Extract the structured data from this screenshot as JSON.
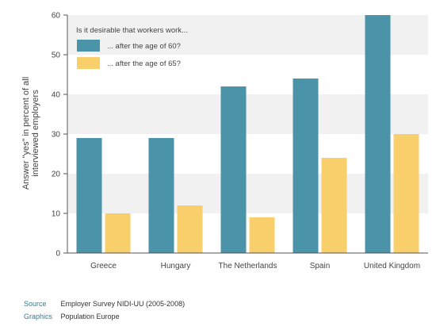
{
  "chart_data": {
    "type": "bar",
    "legend_title": "Is it desirable that workers work...",
    "categories": [
      "Greece",
      "Hungary",
      "The Netherlands",
      "Spain",
      "United Kingdom"
    ],
    "series": [
      {
        "name": "... after the age of 60?",
        "color": "#4a93a8",
        "values": [
          29,
          29,
          42,
          44,
          60
        ]
      },
      {
        "name": "... after the age of 65?",
        "color": "#f8cf6b",
        "values": [
          10,
          12,
          9,
          24,
          30
        ]
      }
    ],
    "ylabel_line1": "Answer \"yes\" in percent of all",
    "ylabel_line2": "interviewed employers",
    "ylim": [
      0,
      60
    ],
    "yticks": [
      "0",
      "10",
      "20",
      "30",
      "40",
      "50",
      "60"
    ],
    "grid": "alternating horizontal bands",
    "legend_position": "top-left"
  },
  "footer": {
    "source_label": "Source",
    "source_text": "Employer Survey NIDI-UU (2005-2008)",
    "graphics_label": "Graphics",
    "graphics_text": "Population Europe"
  }
}
